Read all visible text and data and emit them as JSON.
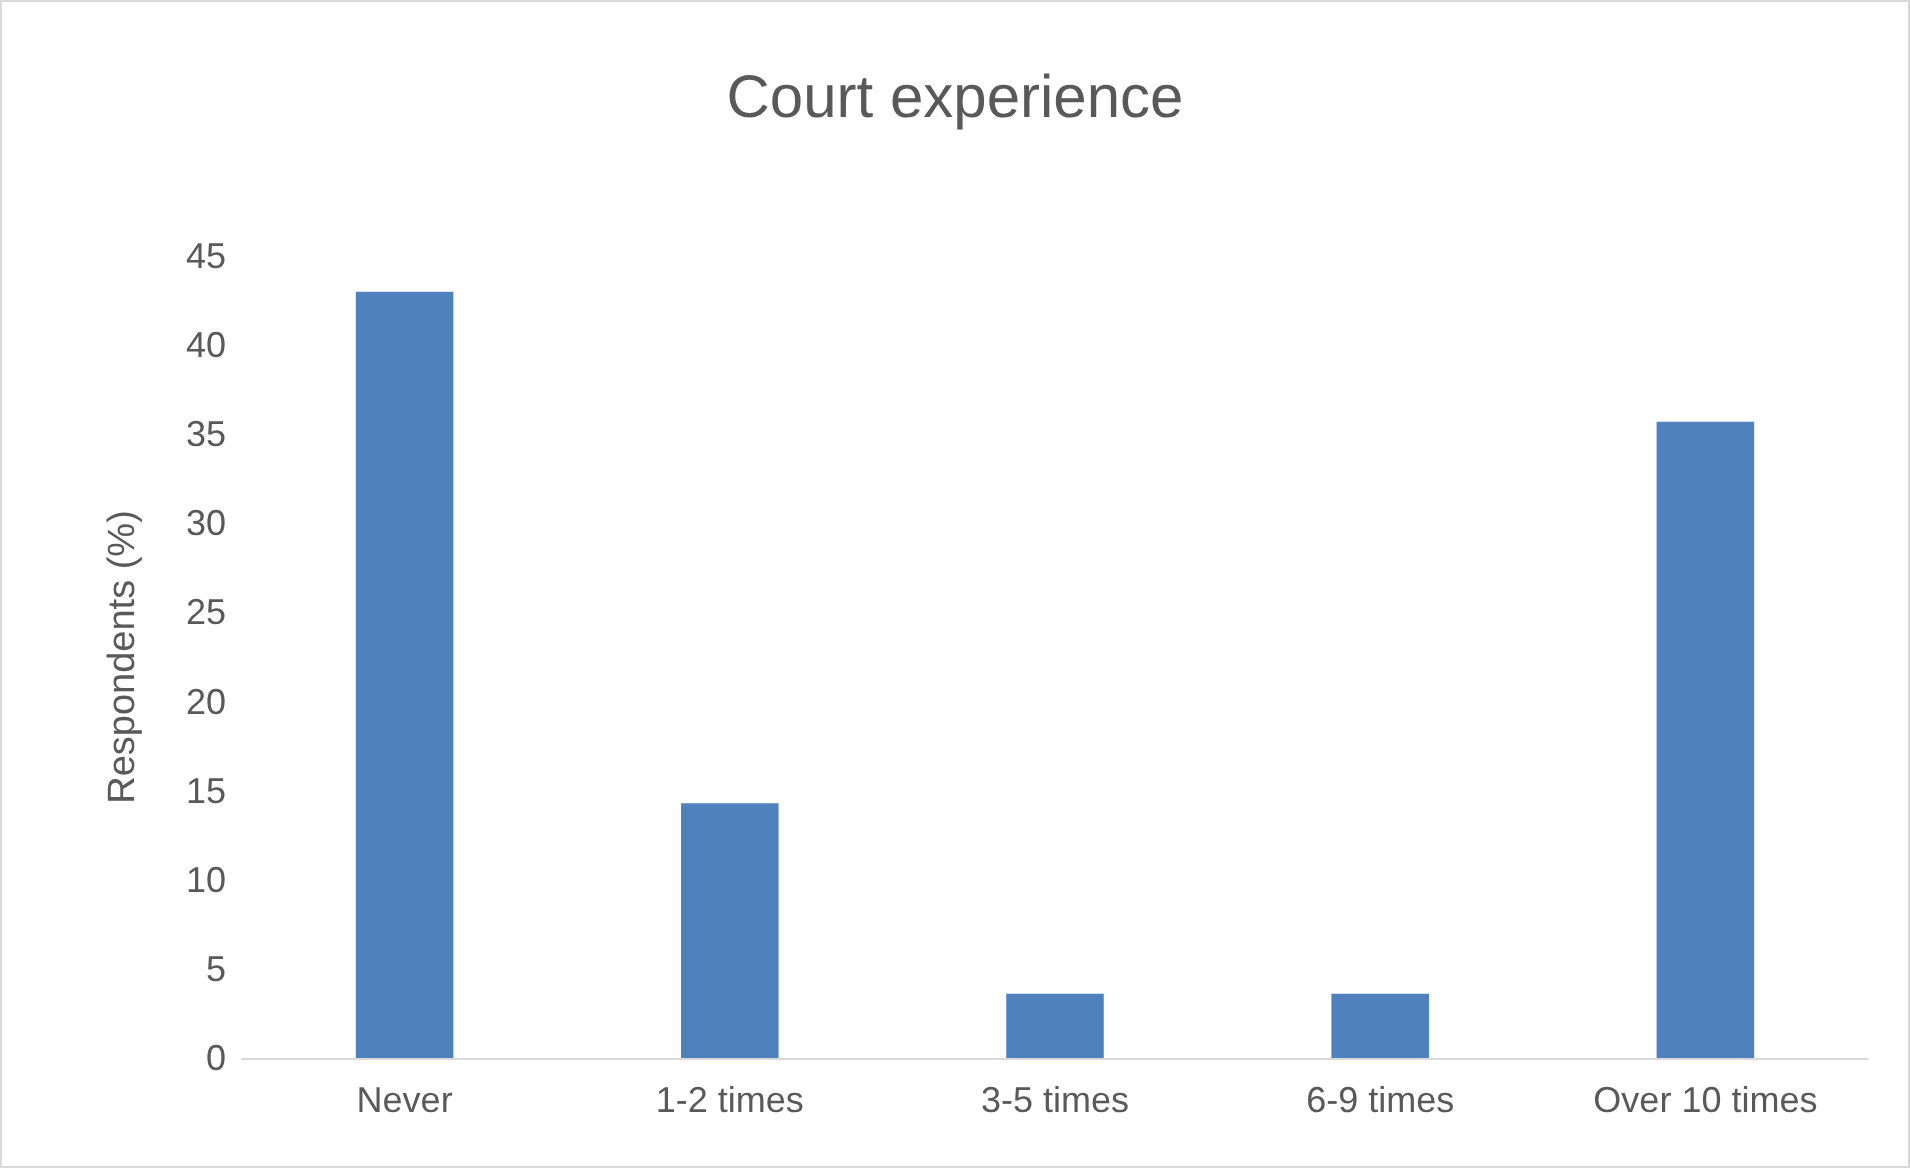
{
  "chart_data": {
    "type": "bar",
    "title": "Court experience",
    "ylabel": "Respondents (%)",
    "categories": [
      "Never",
      "1-2 times",
      "3-5 times",
      "6-9 times",
      "Over 10 times"
    ],
    "values": [
      43,
      14.3,
      3.6,
      3.6,
      35.7
    ],
    "color": "#4f81bd",
    "ylim": [
      0,
      45
    ],
    "yticks": [
      0,
      5,
      10,
      15,
      20,
      25,
      30,
      35,
      40,
      45
    ],
    "grid": false
  }
}
